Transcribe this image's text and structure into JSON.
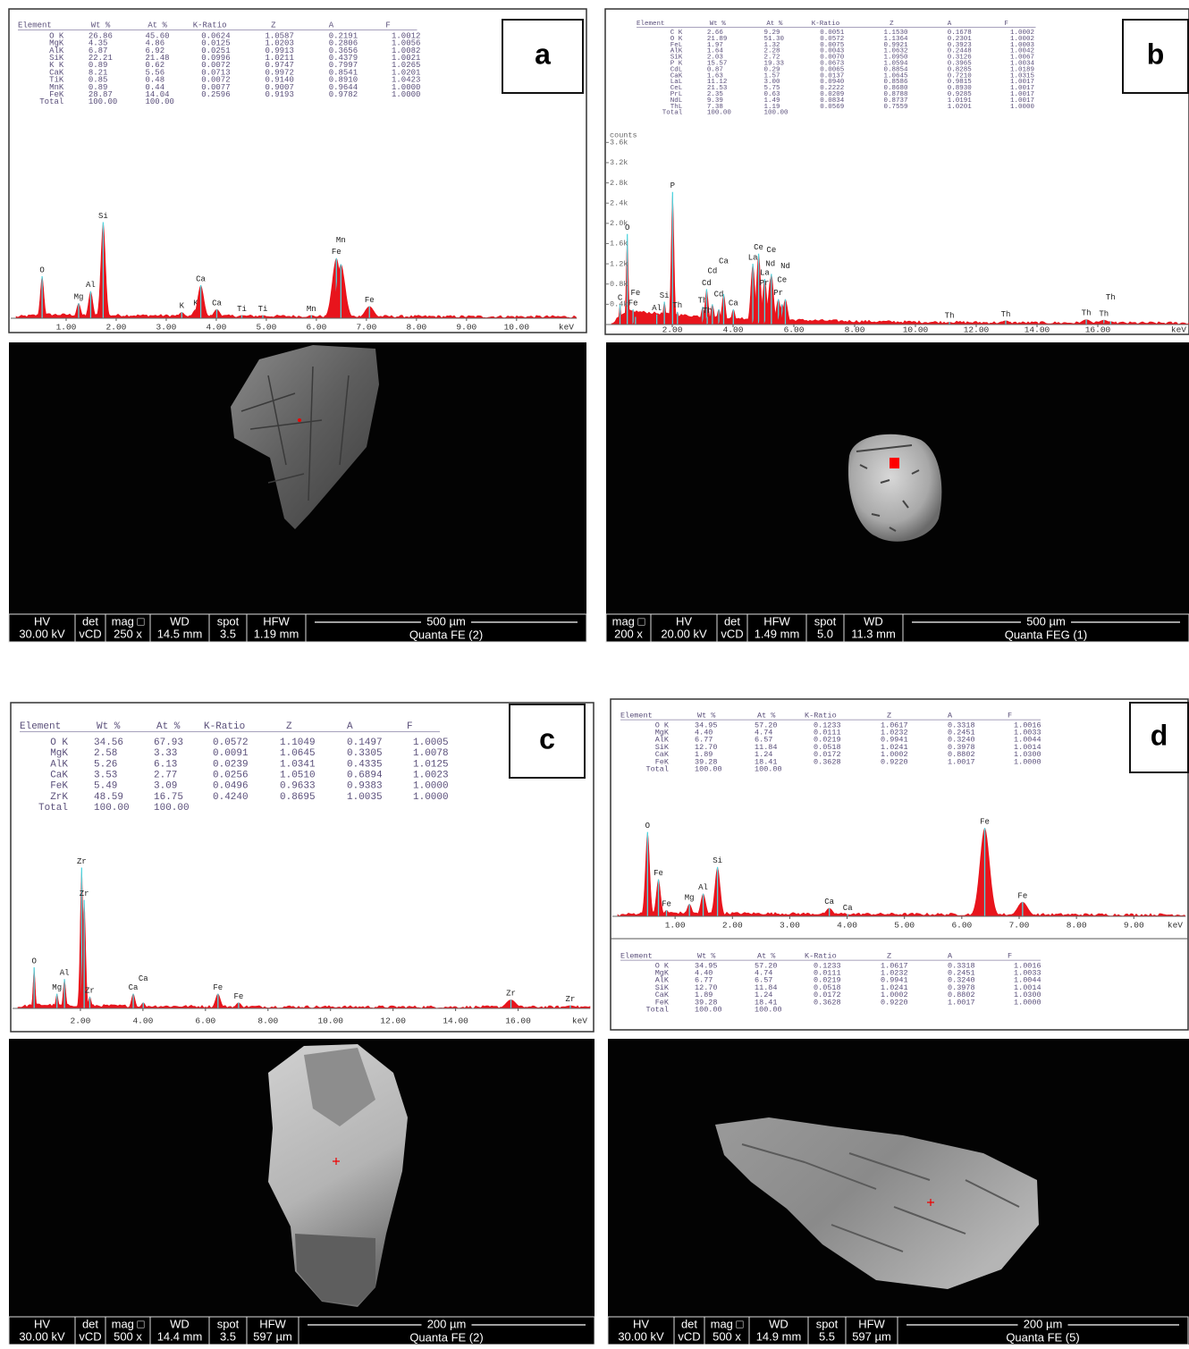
{
  "panels": [
    {
      "label": "a",
      "table": {
        "header": [
          "Element",
          "Wt %",
          "At %",
          "K-Ratio",
          "Z",
          "A",
          "F"
        ],
        "rows": [
          [
            "O K",
            "26.86",
            "45.60",
            "0.0624",
            "1.0587",
            "0.2191",
            "1.0012"
          ],
          [
            "MgK",
            "4.35",
            "4.86",
            "0.0125",
            "1.0203",
            "0.2806",
            "1.0056"
          ],
          [
            "AlK",
            "6.87",
            "6.92",
            "0.0251",
            "0.9913",
            "0.3656",
            "1.0082"
          ],
          [
            "SiK",
            "22.21",
            "21.48",
            "0.0996",
            "1.0211",
            "0.4379",
            "1.0021"
          ],
          [
            "K K",
            "0.89",
            "0.62",
            "0.0072",
            "0.9747",
            "0.7997",
            "1.0265"
          ],
          [
            "CaK",
            "8.21",
            "5.56",
            "0.0713",
            "0.9972",
            "0.8541",
            "1.0201"
          ],
          [
            "TiK",
            "0.85",
            "0.48",
            "0.0072",
            "0.9140",
            "0.8910",
            "1.0423"
          ],
          [
            "MnK",
            "0.89",
            "0.44",
            "0.0077",
            "0.9007",
            "0.9644",
            "1.0000"
          ],
          [
            "FeK",
            "28.87",
            "14.04",
            "0.2596",
            "0.9193",
            "0.9782",
            "1.0000"
          ],
          [
            "Total",
            "100.00",
            "100.00"
          ]
        ]
      },
      "sem": {
        "columns": [
          {
            "header": "HV",
            "value": "30.00 kV"
          },
          {
            "header": "det",
            "value": "vCD"
          },
          {
            "header": "mag □",
            "value": "250 x"
          },
          {
            "header": "WD",
            "value": "14.5 mm"
          },
          {
            "header": "spot",
            "value": "3.5"
          },
          {
            "header": "HFW",
            "value": "1.19 mm"
          }
        ],
        "scale_bar": "500 µm",
        "instrument": "Quanta FE (2)"
      }
    },
    {
      "label": "b",
      "table": {
        "header": [
          "Element",
          "Wt %",
          "At %",
          "K-Ratio",
          "Z",
          "A",
          "F"
        ],
        "rows": [
          [
            "C K",
            "2.66",
            "9.29",
            "0.0051",
            "1.1530",
            "0.1678",
            "1.0002"
          ],
          [
            "O K",
            "21.89",
            "51.30",
            "0.0572",
            "1.1364",
            "0.2301",
            "1.0002"
          ],
          [
            "FeL",
            "1.97",
            "1.32",
            "0.0075",
            "0.9921",
            "0.3923",
            "1.0003"
          ],
          [
            "AlK",
            "1.64",
            "2.28",
            "0.0043",
            "1.0632",
            "0.2448",
            "1.0042"
          ],
          [
            "SiK",
            "2.03",
            "2.72",
            "0.0070",
            "1.0950",
            "0.3126",
            "1.0067"
          ],
          [
            "P K",
            "15.57",
            "19.33",
            "0.0673",
            "1.0594",
            "0.3965",
            "1.0034"
          ],
          [
            "CdL",
            "0.87",
            "0.29",
            "0.0065",
            "0.8854",
            "0.8285",
            "1.0189"
          ],
          [
            "CaK",
            "1.63",
            "1.57",
            "0.0137",
            "1.0645",
            "0.7210",
            "1.0315"
          ],
          [
            "LaL",
            "11.12",
            "3.00",
            "0.0940",
            "0.8586",
            "0.9815",
            "1.0017"
          ],
          [
            "CeL",
            "21.53",
            "5.75",
            "0.2222",
            "0.8680",
            "0.8930",
            "1.0017"
          ],
          [
            "PrL",
            "2.35",
            "0.63",
            "0.0209",
            "0.8788",
            "0.9285",
            "1.0017"
          ],
          [
            "NdL",
            "9.39",
            "1.49",
            "0.0834",
            "0.8737",
            "1.0191",
            "1.0017"
          ],
          [
            "ThL",
            "7.38",
            "1.19",
            "0.0569",
            "0.7559",
            "1.0201",
            "1.0000"
          ],
          [
            "Total",
            "100.00",
            "100.00"
          ]
        ]
      },
      "sem": {
        "columns": [
          {
            "header": "mag □",
            "value": "200 x"
          },
          {
            "header": "HV",
            "value": "20.00 kV"
          },
          {
            "header": "det",
            "value": "vCD"
          },
          {
            "header": "HFW",
            "value": "1.49 mm"
          },
          {
            "header": "spot",
            "value": "5.0"
          },
          {
            "header": "WD",
            "value": "11.3 mm"
          }
        ],
        "scale_bar": "500 µm",
        "instrument": "Quanta FEG (1)"
      }
    },
    {
      "label": "c",
      "table": {
        "header": [
          "Element",
          "Wt %",
          "At %",
          "K-Ratio",
          "Z",
          "A",
          "F"
        ],
        "rows": [
          [
            "O K",
            "34.56",
            "67.93",
            "0.0572",
            "1.1049",
            "0.1497",
            "1.0005"
          ],
          [
            "MgK",
            "2.58",
            "3.33",
            "0.0091",
            "1.0645",
            "0.3305",
            "1.0078"
          ],
          [
            "AlK",
            "5.26",
            "6.13",
            "0.0239",
            "1.0341",
            "0.4335",
            "1.0125"
          ],
          [
            "CaK",
            "3.53",
            "2.77",
            "0.0256",
            "1.0510",
            "0.6894",
            "1.0023"
          ],
          [
            "FeK",
            "5.49",
            "3.09",
            "0.0496",
            "0.9633",
            "0.9383",
            "1.0000"
          ],
          [
            "ZrK",
            "48.59",
            "16.75",
            "0.4240",
            "0.8695",
            "1.0035",
            "1.0000"
          ],
          [
            "Total",
            "100.00",
            "100.00"
          ]
        ]
      },
      "sem": {
        "columns": [
          {
            "header": "HV",
            "value": "30.00 kV"
          },
          {
            "header": "det",
            "value": "vCD"
          },
          {
            "header": "mag □",
            "value": "500 x"
          },
          {
            "header": "WD",
            "value": "14.4 mm"
          },
          {
            "header": "spot",
            "value": "3.5"
          },
          {
            "header": "HFW",
            "value": "597 µm"
          }
        ],
        "scale_bar": "200 µm",
        "instrument": "Quanta FE (2)"
      }
    },
    {
      "label": "d",
      "table": {
        "header": [
          "Element",
          "Wt %",
          "At %",
          "K-Ratio",
          "Z",
          "A",
          "F"
        ],
        "rows": [
          [
            "O K",
            "34.95",
            "57.20",
            "0.1233",
            "1.0617",
            "0.3318",
            "1.0016"
          ],
          [
            "MgK",
            "4.40",
            "4.74",
            "0.0111",
            "1.0232",
            "0.2451",
            "1.0033"
          ],
          [
            "AlK",
            "6.77",
            "6.57",
            "0.0219",
            "0.9941",
            "0.3240",
            "1.0044"
          ],
          [
            "SiK",
            "12.70",
            "11.84",
            "0.0518",
            "1.0241",
            "0.3978",
            "1.0014"
          ],
          [
            "CaK",
            "1.89",
            "1.24",
            "0.0172",
            "1.0002",
            "0.8802",
            "1.0300"
          ],
          [
            "FeK",
            "39.28",
            "18.41",
            "0.3628",
            "0.9220",
            "1.0017",
            "1.0000"
          ],
          [
            "Total",
            "100.00",
            "100.00"
          ]
        ]
      },
      "sem": {
        "columns": [
          {
            "header": "HV",
            "value": "30.00 kV"
          },
          {
            "header": "det",
            "value": "vCD"
          },
          {
            "header": "mag □",
            "value": "500 x"
          },
          {
            "header": "WD",
            "value": "14.9 mm"
          },
          {
            "header": "spot",
            "value": "5.5"
          },
          {
            "header": "HFW",
            "value": "597 µm"
          }
        ],
        "scale_bar": "200 µm",
        "instrument": "Quanta FE (5)"
      }
    }
  ],
  "chart_data": [
    {
      "type": "spectrum",
      "x_unit": "keV",
      "color": "#e8141c",
      "line_color": "#4fd6e0",
      "xlim": [
        0,
        11.2
      ],
      "ylim": [
        0,
        100
      ],
      "xticks": [
        {
          "value": 1,
          "label": "1.00"
        },
        {
          "value": 2,
          "label": "2.00"
        },
        {
          "value": 3,
          "label": "3.00"
        },
        {
          "value": 4,
          "label": "4.00"
        },
        {
          "value": 5,
          "label": "5.00"
        },
        {
          "value": 6,
          "label": "6.00"
        },
        {
          "value": 7,
          "label": "7.00"
        },
        {
          "value": 8,
          "label": "8.00"
        },
        {
          "value": 9,
          "label": "9.00"
        },
        {
          "value": 10,
          "label": "10.00"
        }
      ],
      "peaks": [
        {
          "label": "O",
          "x": 0.52,
          "height": 14
        },
        {
          "label": "Mg",
          "x": 1.25,
          "height": 5
        },
        {
          "label": "Al",
          "x": 1.49,
          "height": 9
        },
        {
          "label": "Si",
          "x": 1.74,
          "height": 32
        },
        {
          "label": "K",
          "x": 3.31,
          "height": 2
        },
        {
          "label": "K",
          "x": 3.59,
          "height": 3
        },
        {
          "label": "Ca",
          "x": 3.69,
          "height": 11
        },
        {
          "label": "Ca",
          "x": 4.01,
          "height": 3
        },
        {
          "label": "Ti",
          "x": 4.51,
          "height": 1
        },
        {
          "label": "Ti",
          "x": 4.93,
          "height": 1
        },
        {
          "label": "Mn",
          "x": 5.9,
          "height": 1
        },
        {
          "label": "Fe",
          "x": 6.4,
          "height": 20
        },
        {
          "label": "Mn",
          "x": 6.49,
          "height": 18
        },
        {
          "label": "Fe",
          "x": 7.06,
          "height": 4
        }
      ]
    },
    {
      "type": "spectrum",
      "x_unit": "keV",
      "color": "#e8141c",
      "line_color": "#4fd6e0",
      "xlim": [
        0,
        19
      ],
      "ylim": [
        0,
        3800
      ],
      "ylabel": "counts",
      "yticks": [
        {
          "value": 400,
          "label": "0.4k"
        },
        {
          "value": 800,
          "label": "0.8k"
        },
        {
          "value": 1200,
          "label": "1.2k"
        },
        {
          "value": 1600,
          "label": "1.6k"
        },
        {
          "value": 2000,
          "label": "2.0k"
        },
        {
          "value": 2400,
          "label": "2.4k"
        },
        {
          "value": 2800,
          "label": "2.8k"
        },
        {
          "value": 3200,
          "label": "3.2k"
        },
        {
          "value": 3600,
          "label": "3.6k"
        }
      ],
      "xticks": [
        {
          "value": 2,
          "label": "2.00"
        },
        {
          "value": 4,
          "label": "4.00"
        },
        {
          "value": 6,
          "label": "6.00"
        },
        {
          "value": 8,
          "label": "8.00"
        },
        {
          "value": 10,
          "label": "10.00"
        },
        {
          "value": 12,
          "label": "12.00"
        },
        {
          "value": 14,
          "label": "14.00"
        },
        {
          "value": 16,
          "label": "16.00"
        }
      ],
      "peaks": [
        {
          "label": "C",
          "x": 0.28,
          "height": 400
        },
        {
          "label": "O",
          "x": 0.52,
          "height": 1790
        },
        {
          "label": "Fe",
          "x": 0.71,
          "height": 300
        },
        {
          "label": "Fe",
          "x": 0.79,
          "height": 150
        },
        {
          "label": "Al",
          "x": 1.49,
          "height": 200
        },
        {
          "label": "Si",
          "x": 1.74,
          "height": 450
        },
        {
          "label": "P",
          "x": 2.01,
          "height": 2620
        },
        {
          "label": "Th",
          "x": 2.17,
          "height": 250
        },
        {
          "label": "Th",
          "x": 3.0,
          "height": 350
        },
        {
          "label": "Cd",
          "x": 3.13,
          "height": 700
        },
        {
          "label": "Th",
          "x": 3.15,
          "height": 150
        },
        {
          "label": "Cd",
          "x": 3.32,
          "height": 400
        },
        {
          "label": "Cd",
          "x": 3.53,
          "height": 300
        },
        {
          "label": "Ca",
          "x": 3.69,
          "height": 600
        },
        {
          "label": "Ca",
          "x": 4.01,
          "height": 300
        },
        {
          "label": "La",
          "x": 4.65,
          "height": 1200
        },
        {
          "label": "Ce",
          "x": 4.84,
          "height": 1400
        },
        {
          "label": "Pr",
          "x": 5.03,
          "height": 700
        },
        {
          "label": "La",
          "x": 5.04,
          "height": 900
        },
        {
          "label": "Nd",
          "x": 5.23,
          "height": 900
        },
        {
          "label": "Ce",
          "x": 5.26,
          "height": 1000
        },
        {
          "label": "Pr",
          "x": 5.49,
          "height": 500
        },
        {
          "label": "Ce",
          "x": 5.61,
          "height": 400
        },
        {
          "label": "Nd",
          "x": 5.72,
          "height": 500
        },
        {
          "label": "Th",
          "x": 11.12,
          "height": 50
        },
        {
          "label": "Th",
          "x": 12.97,
          "height": 80
        },
        {
          "label": "Th",
          "x": 15.62,
          "height": 100
        },
        {
          "label": "Th",
          "x": 16.2,
          "height": 90
        },
        {
          "label": "Th",
          "x": 16.42,
          "height": 60
        }
      ]
    },
    {
      "type": "spectrum",
      "x_unit": "keV",
      "color": "#e8141c",
      "line_color": "#4fd6e0",
      "xlim": [
        0,
        18.3
      ],
      "ylim": [
        0,
        100
      ],
      "xticks": [
        {
          "value": 2,
          "label": "2.00"
        },
        {
          "value": 4,
          "label": "4.00"
        },
        {
          "value": 6,
          "label": "6.00"
        },
        {
          "value": 8,
          "label": "8.00"
        },
        {
          "value": 10,
          "label": "10.00"
        },
        {
          "value": 12,
          "label": "12.00"
        },
        {
          "value": 14,
          "label": "14.00"
        },
        {
          "value": 16,
          "label": "16.00"
        }
      ],
      "peaks": [
        {
          "label": "O",
          "x": 0.52,
          "height": 14
        },
        {
          "label": "Mg",
          "x": 1.25,
          "height": 5
        },
        {
          "label": "Al",
          "x": 1.49,
          "height": 10
        },
        {
          "label": "Zr",
          "x": 2.04,
          "height": 48
        },
        {
          "label": "Zr",
          "x": 2.12,
          "height": 37
        },
        {
          "label": "Zr",
          "x": 2.3,
          "height": 4
        },
        {
          "label": "Ca",
          "x": 3.69,
          "height": 5
        },
        {
          "label": "Ca",
          "x": 4.01,
          "height": 2
        },
        {
          "label": "Fe",
          "x": 6.4,
          "height": 5
        },
        {
          "label": "Fe",
          "x": 7.06,
          "height": 2
        },
        {
          "label": "Zr",
          "x": 15.77,
          "height": 3
        },
        {
          "label": "Zr",
          "x": 17.67,
          "height": 1
        }
      ]
    },
    {
      "type": "spectrum",
      "x_unit": "keV",
      "color": "#e8141c",
      "line_color": "#4fd6e0",
      "xlim": [
        0,
        9.9
      ],
      "ylim": [
        0,
        100
      ],
      "xticks": [
        {
          "value": 1,
          "label": "1.00"
        },
        {
          "value": 2,
          "label": "2.00"
        },
        {
          "value": 3,
          "label": "3.00"
        },
        {
          "value": 4,
          "label": "4.00"
        },
        {
          "value": 5,
          "label": "5.00"
        },
        {
          "value": 6,
          "label": "6.00"
        },
        {
          "value": 7,
          "label": "7.00"
        },
        {
          "value": 8,
          "label": "8.00"
        },
        {
          "value": 9,
          "label": "9.00"
        }
      ],
      "peaks": [
        {
          "label": "O",
          "x": 0.52,
          "height": 41
        },
        {
          "label": "Fe",
          "x": 0.71,
          "height": 18
        },
        {
          "label": "Fe",
          "x": 0.85,
          "height": 3
        },
        {
          "label": "Mg",
          "x": 1.25,
          "height": 6
        },
        {
          "label": "Al",
          "x": 1.49,
          "height": 11
        },
        {
          "label": "Si",
          "x": 1.74,
          "height": 24
        },
        {
          "label": "Ca",
          "x": 3.69,
          "height": 4
        },
        {
          "label": "Ca",
          "x": 4.01,
          "height": 1
        },
        {
          "label": "Fe",
          "x": 6.4,
          "height": 43
        },
        {
          "label": "Fe",
          "x": 7.06,
          "height": 7
        }
      ]
    }
  ]
}
